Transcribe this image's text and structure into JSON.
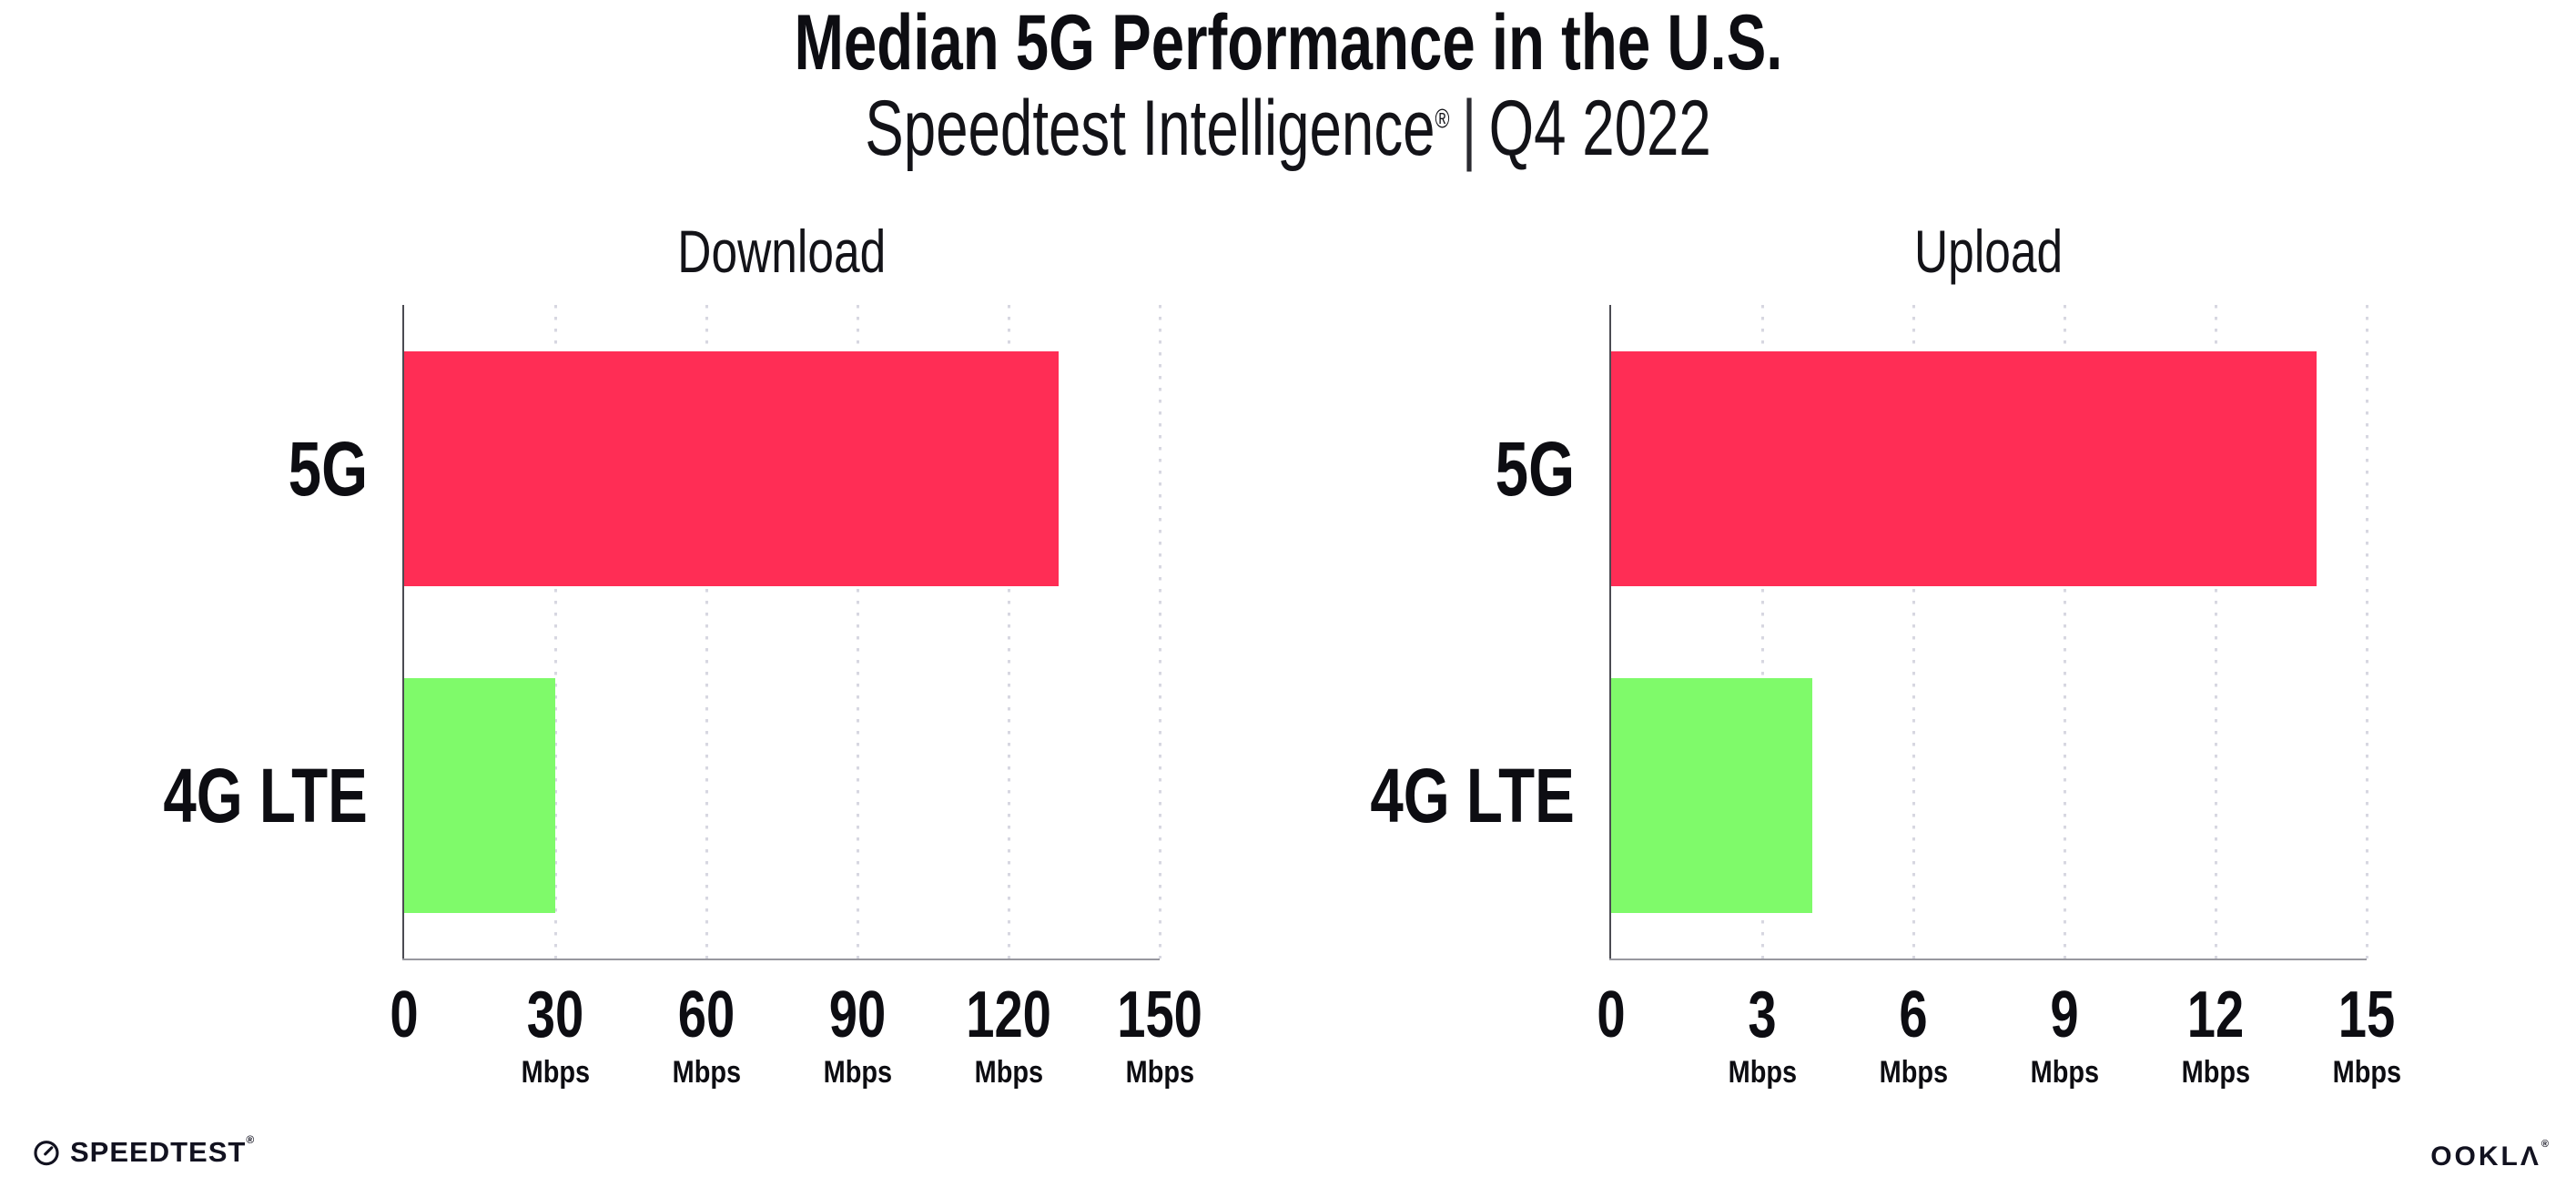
{
  "header": {
    "title": "Median 5G Performance in the U.S.",
    "subtitle_brand": "Speedtest Intelligence",
    "subtitle_reg": "®",
    "subtitle_separator": "|",
    "subtitle_period": "Q4 2022"
  },
  "footer": {
    "speedtest_logo_text": "SPEEDTEST",
    "speedtest_reg": "®",
    "ookla_logo_text": "OOKLΛ",
    "ookla_reg": "®"
  },
  "icons": {
    "speedtest_gauge_icon": "circular speedometer gauge with needle"
  },
  "colors": {
    "bar_5g": "#ff2d55",
    "bar_4g_lte": "#7ffa6a",
    "gridline": "#d7d7e1",
    "y_axis_line": "#4b4b52",
    "x_axis_line": "#97979e",
    "text": "#0d0d12",
    "background": "#ffffff"
  },
  "chart_data": [
    {
      "type": "bar",
      "orientation": "horizontal",
      "title": "Download",
      "categories": [
        "5G",
        "4G LTE"
      ],
      "values": [
        130,
        30
      ],
      "unit": "Mbps",
      "xlim": [
        0,
        150
      ],
      "xticks": [
        0,
        30,
        60,
        90,
        120,
        150
      ],
      "tick_unit_label": "Mbps",
      "unit_shown_on_zero_tick": false,
      "grid": "vertical-dotted",
      "legend": "none",
      "bar_colors": [
        "#ff2d55",
        "#7ffa6a"
      ]
    },
    {
      "type": "bar",
      "orientation": "horizontal",
      "title": "Upload",
      "categories": [
        "5G",
        "4G LTE"
      ],
      "values": [
        14,
        4
      ],
      "unit": "Mbps",
      "xlim": [
        0,
        15
      ],
      "xticks": [
        0,
        3,
        6,
        9,
        12,
        15
      ],
      "tick_unit_label": "Mbps",
      "unit_shown_on_zero_tick": false,
      "grid": "vertical-dotted",
      "legend": "none",
      "bar_colors": [
        "#ff2d55",
        "#7ffa6a"
      ]
    }
  ]
}
